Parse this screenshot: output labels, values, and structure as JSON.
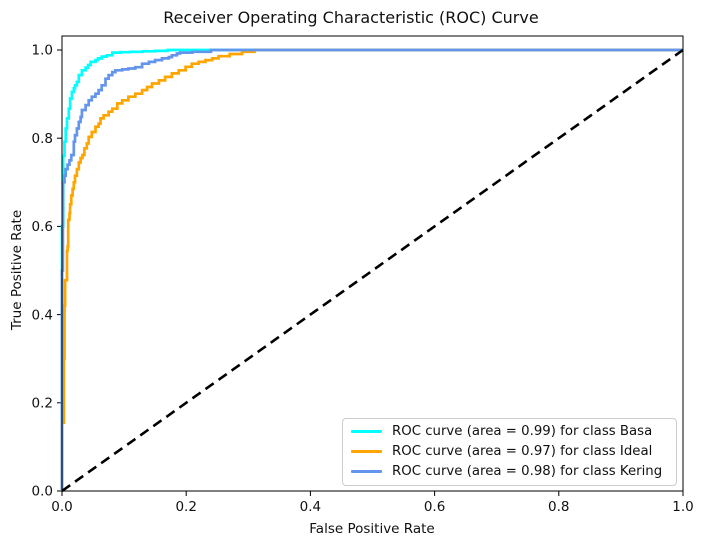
{
  "figure": {
    "title": "Receiver Operating Characteristic (ROC) Curve",
    "xlabel": "False Positive Rate",
    "ylabel": "True Positive Rate"
  },
  "chart_data": {
    "type": "line",
    "title": "Receiver Operating Characteristic (ROC) Curve",
    "xlabel": "False Positive Rate",
    "ylabel": "True Positive Rate",
    "xlim": [
      0.0,
      1.0
    ],
    "ylim": [
      0.0,
      1.03
    ],
    "xtick_labels": [
      "0.0",
      "0.2",
      "0.4",
      "0.6",
      "0.8",
      "1.0"
    ],
    "ytick_labels": [
      "0.0",
      "0.2",
      "0.4",
      "0.6",
      "0.8",
      "1.0"
    ],
    "grid": false,
    "legend_position": "lower right",
    "series": [
      {
        "name": "ROC curve (area = 0.99) for class Basa",
        "class": "Basa",
        "auc": 0.99,
        "color": "#00ffff",
        "style": "solid",
        "interpolation": "step",
        "points": [
          [
            0,
            0
          ],
          [
            0.002,
            0.6
          ],
          [
            0.002,
            0.715
          ],
          [
            0.004,
            0.76
          ],
          [
            0.006,
            0.792
          ],
          [
            0.008,
            0.822
          ],
          [
            0.011,
            0.845
          ],
          [
            0.013,
            0.867
          ],
          [
            0.016,
            0.89
          ],
          [
            0.019,
            0.905
          ],
          [
            0.021,
            0.913
          ],
          [
            0.024,
            0.92
          ],
          [
            0.027,
            0.928
          ],
          [
            0.032,
            0.943
          ],
          [
            0.038,
            0.954
          ],
          [
            0.042,
            0.96
          ],
          [
            0.046,
            0.966
          ],
          [
            0.054,
            0.973
          ],
          [
            0.058,
            0.977
          ],
          [
            0.064,
            0.981
          ],
          [
            0.072,
            0.985
          ],
          [
            0.081,
            0.988
          ],
          [
            0.094,
            0.994
          ],
          [
            0.11,
            0.995
          ],
          [
            0.13,
            0.996
          ],
          [
            0.15,
            0.997
          ],
          [
            0.17,
            0.998
          ],
          [
            0.185,
            1.0
          ],
          [
            1.0,
            1.0
          ]
        ]
      },
      {
        "name": "ROC curve (area = 0.97) for class Ideal",
        "class": "Ideal",
        "auc": 0.97,
        "color": "#ffa500",
        "style": "solid",
        "interpolation": "step",
        "points": [
          [
            0,
            0
          ],
          [
            0.003,
            0.155
          ],
          [
            0.004,
            0.3
          ],
          [
            0.004,
            0.38
          ],
          [
            0.005,
            0.42
          ],
          [
            0.005,
            0.47
          ],
          [
            0.008,
            0.478
          ],
          [
            0.008,
            0.52
          ],
          [
            0.009,
            0.545
          ],
          [
            0.01,
            0.555
          ],
          [
            0.01,
            0.6
          ],
          [
            0.012,
            0.615
          ],
          [
            0.013,
            0.63
          ],
          [
            0.015,
            0.65
          ],
          [
            0.017,
            0.67
          ],
          [
            0.019,
            0.685
          ],
          [
            0.021,
            0.7
          ],
          [
            0.024,
            0.715
          ],
          [
            0.027,
            0.73
          ],
          [
            0.03,
            0.745
          ],
          [
            0.033,
            0.755
          ],
          [
            0.036,
            0.762
          ],
          [
            0.04,
            0.777
          ],
          [
            0.043,
            0.788
          ],
          [
            0.048,
            0.803
          ],
          [
            0.054,
            0.814
          ],
          [
            0.059,
            0.826
          ],
          [
            0.062,
            0.833
          ],
          [
            0.067,
            0.845
          ],
          [
            0.075,
            0.852
          ],
          [
            0.081,
            0.86
          ],
          [
            0.089,
            0.867
          ],
          [
            0.097,
            0.879
          ],
          [
            0.107,
            0.886
          ],
          [
            0.118,
            0.894
          ],
          [
            0.129,
            0.901
          ],
          [
            0.137,
            0.909
          ],
          [
            0.145,
            0.916
          ],
          [
            0.156,
            0.924
          ],
          [
            0.166,
            0.931
          ],
          [
            0.177,
            0.939
          ],
          [
            0.188,
            0.947
          ],
          [
            0.199,
            0.954
          ],
          [
            0.209,
            0.962
          ],
          [
            0.22,
            0.969
          ],
          [
            0.231,
            0.973
          ],
          [
            0.242,
            0.977
          ],
          [
            0.252,
            0.981
          ],
          [
            0.27,
            0.986
          ],
          [
            0.29,
            0.991
          ],
          [
            0.31,
            0.996
          ],
          [
            0.33,
            1.0
          ],
          [
            1.0,
            1.0
          ]
        ]
      },
      {
        "name": "ROC curve (area = 0.98) for class Kering",
        "class": "Kering",
        "auc": 0.98,
        "color": "#6495ed",
        "style": "solid",
        "interpolation": "step",
        "points": [
          [
            0,
            0
          ],
          [
            0.0015,
            0.5
          ],
          [
            0.0015,
            0.64
          ],
          [
            0.004,
            0.7
          ],
          [
            0.006,
            0.715
          ],
          [
            0.009,
            0.73
          ],
          [
            0.012,
            0.74
          ],
          [
            0.015,
            0.75
          ],
          [
            0.019,
            0.762
          ],
          [
            0.021,
            0.792
          ],
          [
            0.024,
            0.807
          ],
          [
            0.027,
            0.822
          ],
          [
            0.03,
            0.837
          ],
          [
            0.032,
            0.848
          ],
          [
            0.038,
            0.864
          ],
          [
            0.043,
            0.875
          ],
          [
            0.048,
            0.886
          ],
          [
            0.054,
            0.894
          ],
          [
            0.059,
            0.901
          ],
          [
            0.064,
            0.909
          ],
          [
            0.07,
            0.92
          ],
          [
            0.075,
            0.935
          ],
          [
            0.081,
            0.943
          ],
          [
            0.086,
            0.95
          ],
          [
            0.097,
            0.954
          ],
          [
            0.107,
            0.956
          ],
          [
            0.118,
            0.958
          ],
          [
            0.129,
            0.961
          ],
          [
            0.14,
            0.969
          ],
          [
            0.15,
            0.973
          ],
          [
            0.161,
            0.977
          ],
          [
            0.172,
            0.981
          ],
          [
            0.177,
            0.984
          ],
          [
            0.185,
            0.988
          ],
          [
            0.19,
            0.992
          ],
          [
            0.21,
            0.994
          ],
          [
            0.24,
            0.996
          ],
          [
            0.259,
            1.0
          ],
          [
            1.0,
            1.0
          ]
        ]
      }
    ],
    "reference_line": {
      "name": "chance-diagonal",
      "color": "#000000",
      "style": "dashed",
      "points": [
        [
          0,
          0
        ],
        [
          1,
          1
        ]
      ]
    }
  },
  "legend": {
    "items": [
      {
        "label": "ROC curve (area = 0.99) for class Basa",
        "color": "#00ffff"
      },
      {
        "label": "ROC curve (area = 0.97) for class Ideal",
        "color": "#ffa500"
      },
      {
        "label": "ROC curve (area = 0.98) for class Kering",
        "color": "#6495ed"
      }
    ]
  }
}
